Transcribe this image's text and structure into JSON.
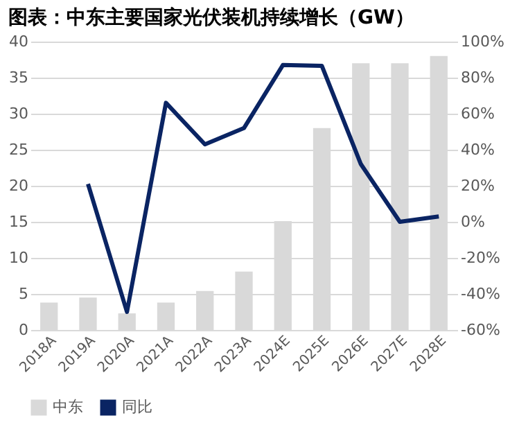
{
  "chart_data": {
    "type": "bar",
    "title": "图表：中东主要国家光伏装机持续增长（GW）",
    "categories": [
      "2018A",
      "2019A",
      "2020A",
      "2021A",
      "2022A",
      "2023A",
      "2024E",
      "2025E",
      "2026E",
      "2027E",
      "2028E"
    ],
    "series": [
      {
        "name": "中东",
        "color": "#d9d9d9",
        "values": [
          3.8,
          4.5,
          2.3,
          3.8,
          5.4,
          8.1,
          15.1,
          28,
          37,
          37,
          38
        ]
      },
      {
        "name": "同比",
        "type": "line",
        "axis": "y2",
        "color": "#0a2463",
        "values": [
          null,
          21,
          -50,
          66,
          43,
          52,
          87,
          86.5,
          32,
          0,
          3
        ]
      }
    ],
    "ylim": [
      0,
      40
    ],
    "yticks": [
      0,
      5,
      10,
      15,
      20,
      25,
      30,
      35,
      40
    ],
    "y2lim": [
      -60,
      100
    ],
    "y2ticks": [
      {
        "value": -60,
        "label": "-60%"
      },
      {
        "value": -40,
        "label": "-40%"
      },
      {
        "value": -20,
        "label": "-20%"
      },
      {
        "value": 0,
        "label": "0%"
      },
      {
        "value": 20,
        "label": "20%"
      },
      {
        "value": 40,
        "label": "40%"
      },
      {
        "value": 60,
        "label": "60%"
      },
      {
        "value": 80,
        "label": "80%"
      },
      {
        "value": 100,
        "label": "100%"
      }
    ],
    "grid": "y",
    "legend": "bottom"
  }
}
